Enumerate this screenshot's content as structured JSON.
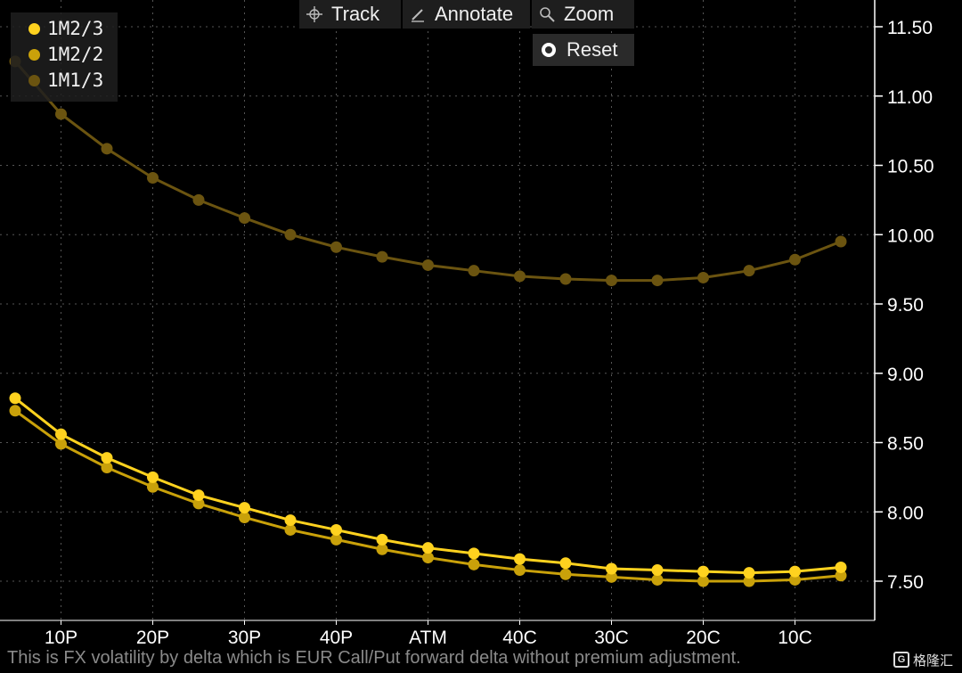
{
  "toolbar": {
    "track_label": "Track",
    "annotate_label": "Annotate",
    "zoom_label": "Zoom",
    "reset_label": "Reset"
  },
  "footer": {
    "note": "This is FX volatility by delta which is EUR Call/Put forward delta without premium adjustment."
  },
  "watermark": {
    "logo_text": "G",
    "text": "格隆汇"
  },
  "chart_data": {
    "type": "line",
    "categories": [
      "5P",
      "10P",
      "15P",
      "20P",
      "25P",
      "30P",
      "35P",
      "40P",
      "45P",
      "ATM",
      "45C",
      "40C",
      "35C",
      "30C",
      "25C",
      "20C",
      "15C",
      "10C",
      "5C"
    ],
    "tick_labels": [
      "10P",
      "20P",
      "30P",
      "40P",
      "ATM",
      "40C",
      "30C",
      "20C",
      "10C"
    ],
    "ylim": [
      7.2,
      11.7
    ],
    "yticks": [
      7.5,
      8.0,
      8.5,
      9.0,
      9.5,
      10.0,
      10.5,
      11.0,
      11.5
    ],
    "grid": true,
    "legend_position": "top-left",
    "series": [
      {
        "name": "1M2/3",
        "color": "#ffd21f",
        "values": [
          8.82,
          8.56,
          8.39,
          8.25,
          8.12,
          8.03,
          7.94,
          7.87,
          7.8,
          7.74,
          7.7,
          7.66,
          7.63,
          7.59,
          7.58,
          7.57,
          7.56,
          7.57,
          7.6
        ]
      },
      {
        "name": "1M2/2",
        "color": "#c9a10a",
        "values": [
          8.73,
          8.49,
          8.32,
          8.18,
          8.06,
          7.96,
          7.87,
          7.8,
          7.73,
          7.67,
          7.62,
          7.58,
          7.55,
          7.53,
          7.51,
          7.5,
          7.5,
          7.51,
          7.54
        ]
      },
      {
        "name": "1M1/3",
        "color": "#6b5410",
        "values": [
          11.25,
          10.87,
          10.62,
          10.41,
          10.25,
          10.12,
          10.0,
          9.91,
          9.84,
          9.78,
          9.74,
          9.7,
          9.68,
          9.67,
          9.67,
          9.69,
          9.74,
          9.82,
          9.95
        ]
      }
    ]
  }
}
